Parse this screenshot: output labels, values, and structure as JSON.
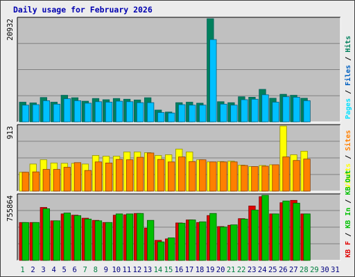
{
  "title": "Daily usage for February 2026",
  "colors": {
    "hits": "#00805c",
    "files": "#00c0ff",
    "pages": "#00e0ff",
    "visits": "#ffff00",
    "sites": "#ff8000",
    "kbin": "#00c000",
    "kbout": "#e00000",
    "weekday_label": "#000080",
    "weekend_label": "#008040",
    "plot_bg": "#c0c0c0"
  },
  "chart_data": [
    {
      "type": "bar",
      "panel": "hits-files-pages",
      "ymax_label": "20932",
      "legend": [
        {
          "text": "Pages",
          "color": "#00e0ff"
        },
        {
          "text": "Files",
          "color": "#0060c0"
        },
        {
          "text": "Hits",
          "color": "#00805c"
        }
      ],
      "x": [
        1,
        2,
        3,
        4,
        5,
        6,
        7,
        8,
        9,
        10,
        11,
        12,
        13,
        14,
        15,
        16,
        17,
        18,
        19,
        20,
        21,
        22,
        23,
        24,
        25,
        26,
        27,
        28
      ],
      "series": [
        {
          "name": "Hits",
          "values": [
            4000,
            3850,
            4950,
            4000,
            5400,
            4900,
            4200,
            4750,
            4500,
            4750,
            4600,
            4450,
            4900,
            2400,
            2000,
            3900,
            4000,
            3800,
            20932,
            4100,
            3900,
            5100,
            5000,
            6600,
            4800,
            5600,
            5400,
            4800
          ]
        },
        {
          "name": "Files",
          "values": [
            3400,
            3500,
            4300,
            3600,
            4700,
            4300,
            3800,
            4100,
            4000,
            4200,
            4100,
            3900,
            3900,
            1900,
            1800,
            3500,
            3400,
            3400,
            16700,
            3600,
            3400,
            4500,
            4600,
            5500,
            4000,
            5100,
            5000,
            4300
          ]
        }
      ]
    },
    {
      "type": "bar",
      "panel": "visits-sites",
      "ymax_label": "913",
      "legend": [
        {
          "text": "Visits",
          "color": "#ffff00"
        },
        {
          "text": "Sites",
          "color": "#ff8000"
        }
      ],
      "x": [
        1,
        2,
        3,
        4,
        5,
        6,
        7,
        8,
        9,
        10,
        11,
        12,
        13,
        14,
        15,
        16,
        17,
        18,
        19,
        20,
        21,
        22,
        23,
        24,
        25,
        26,
        27,
        28
      ],
      "series": [
        {
          "name": "Visits",
          "values": [
            265,
            380,
            440,
            395,
            390,
            390,
            380,
            500,
            490,
            490,
            550,
            550,
            540,
            500,
            510,
            590,
            550,
            440,
            410,
            415,
            420,
            365,
            345,
            360,
            370,
            913,
            510,
            560
          ]
        },
        {
          "name": "Sites",
          "values": [
            265,
            270,
            305,
            305,
            335,
            400,
            290,
            410,
            395,
            445,
            440,
            475,
            535,
            445,
            410,
            480,
            415,
            440,
            410,
            410,
            410,
            360,
            345,
            350,
            370,
            480,
            430,
            450
          ]
        }
      ]
    },
    {
      "type": "bar",
      "panel": "kbin-kbout",
      "ymax_label": "755864",
      "legend": [
        {
          "text": "KB F",
          "color": "#e00000"
        },
        {
          "text": "KB In",
          "color": "#00c000"
        },
        {
          "text": "KB Out",
          "color": "#00c000"
        }
      ],
      "x": [
        1,
        2,
        3,
        4,
        5,
        6,
        7,
        8,
        9,
        10,
        11,
        12,
        13,
        14,
        15,
        16,
        17,
        18,
        19,
        20,
        21,
        22,
        23,
        24,
        25,
        26,
        27,
        28
      ],
      "series": [
        {
          "name": "KB F",
          "values": [
            440000,
            440000,
            615000,
            460000,
            540000,
            525000,
            490000,
            465000,
            440000,
            525000,
            530000,
            545000,
            375000,
            233000,
            250000,
            435000,
            470000,
            440000,
            521000,
            393000,
            408000,
            485000,
            632000,
            740000,
            540000,
            670000,
            697000,
            540000
          ]
        },
        {
          "name": "KB In",
          "values": [
            440000,
            440000,
            600000,
            460000,
            550000,
            520000,
            480000,
            460000,
            440000,
            540000,
            540000,
            545000,
            465000,
            215000,
            262000,
            432000,
            470000,
            448000,
            545000,
            388000,
            413000,
            480000,
            585000,
            755864,
            540000,
            690000,
            665000,
            540000
          ]
        }
      ]
    }
  ],
  "days": [
    "1",
    "2",
    "3",
    "4",
    "5",
    "6",
    "7",
    "8",
    "9",
    "10",
    "11",
    "12",
    "13",
    "14",
    "15",
    "16",
    "17",
    "18",
    "19",
    "20",
    "21",
    "22",
    "23",
    "24",
    "25",
    "26",
    "27",
    "28",
    "29",
    "30",
    "31"
  ],
  "weekend_days": [
    1,
    7,
    8,
    14,
    15,
    21,
    22,
    28,
    29
  ]
}
